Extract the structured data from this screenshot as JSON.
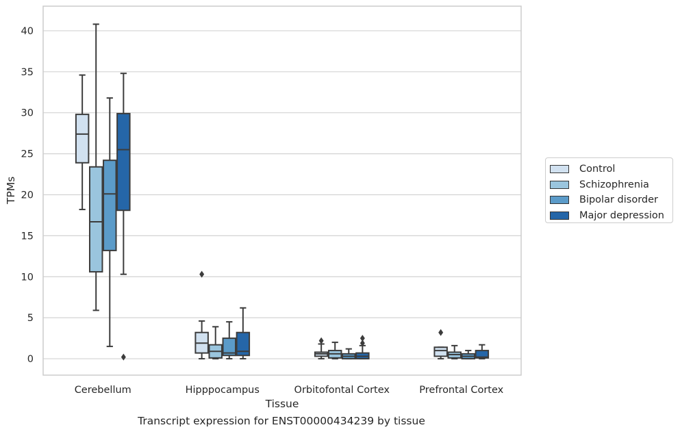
{
  "chart_data": {
    "type": "box",
    "title": "",
    "xlabel": "Tissue",
    "ylabel": "TPMs",
    "ylim": [
      -2,
      43
    ],
    "yticks": [
      0,
      5,
      10,
      15,
      20,
      25,
      30,
      35,
      40
    ],
    "grid": "horizontal",
    "legend_position": "right",
    "categories": [
      "Cerebellum",
      "Hipppocampus",
      "Orbitofontal Cortex",
      "Prefrontal Cortex"
    ],
    "series": [
      {
        "name": "Control",
        "color": "#d1e1f0",
        "boxes": [
          {
            "whislo": 18.2,
            "q1": 23.9,
            "med": 27.4,
            "q3": 29.8,
            "whishi": 34.6,
            "fliers": []
          },
          {
            "whislo": 0.0,
            "q1": 0.7,
            "med": 1.9,
            "q3": 3.2,
            "whishi": 4.6,
            "fliers": [
              10.3
            ]
          },
          {
            "whislo": 0.0,
            "q1": 0.3,
            "med": 0.6,
            "q3": 0.8,
            "whishi": 1.8,
            "fliers": [
              2.2
            ]
          },
          {
            "whislo": 0.0,
            "q1": 0.3,
            "med": 1.0,
            "q3": 1.4,
            "whishi": 1.4,
            "fliers": [
              3.2
            ]
          }
        ]
      },
      {
        "name": "Schizophrenia",
        "color": "#9ac5de",
        "boxes": [
          {
            "whislo": 5.9,
            "q1": 10.6,
            "med": 16.7,
            "q3": 23.4,
            "whishi": 40.8,
            "fliers": []
          },
          {
            "whislo": 0.0,
            "q1": 0.1,
            "med": 0.9,
            "q3": 1.7,
            "whishi": 3.9,
            "fliers": []
          },
          {
            "whislo": 0.0,
            "q1": 0.1,
            "med": 0.6,
            "q3": 1.0,
            "whishi": 2.0,
            "fliers": []
          },
          {
            "whislo": 0.0,
            "q1": 0.1,
            "med": 0.5,
            "q3": 0.8,
            "whishi": 1.6,
            "fliers": []
          }
        ]
      },
      {
        "name": "Bipolar disorder",
        "color": "#5b9bc9",
        "boxes": [
          {
            "whislo": 1.5,
            "q1": 13.2,
            "med": 20.1,
            "q3": 24.2,
            "whishi": 31.8,
            "fliers": []
          },
          {
            "whislo": 0.0,
            "q1": 0.4,
            "med": 0.7,
            "q3": 2.5,
            "whishi": 4.5,
            "fliers": []
          },
          {
            "whislo": 0.0,
            "q1": 0.0,
            "med": 0.3,
            "q3": 0.6,
            "whishi": 1.2,
            "fliers": []
          },
          {
            "whislo": 0.0,
            "q1": 0.0,
            "med": 0.3,
            "q3": 0.6,
            "whishi": 1.0,
            "fliers": []
          }
        ]
      },
      {
        "name": "Major depression",
        "color": "#2566a8",
        "boxes": [
          {
            "whislo": 10.3,
            "q1": 18.1,
            "med": 25.5,
            "q3": 29.9,
            "whishi": 34.8,
            "fliers": [
              0.2
            ]
          },
          {
            "whislo": 0.0,
            "q1": 0.4,
            "med": 0.9,
            "q3": 3.2,
            "whishi": 6.2,
            "fliers": []
          },
          {
            "whislo": 0.0,
            "q1": 0.0,
            "med": 0.3,
            "q3": 0.7,
            "whishi": 1.6,
            "fliers": [
              1.9,
              2.5
            ]
          },
          {
            "whislo": 0.0,
            "q1": 0.1,
            "med": 0.2,
            "q3": 1.0,
            "whishi": 1.7,
            "fliers": []
          }
        ]
      }
    ]
  },
  "caption": "Transcript expression for ENST00000434239 by tissue"
}
